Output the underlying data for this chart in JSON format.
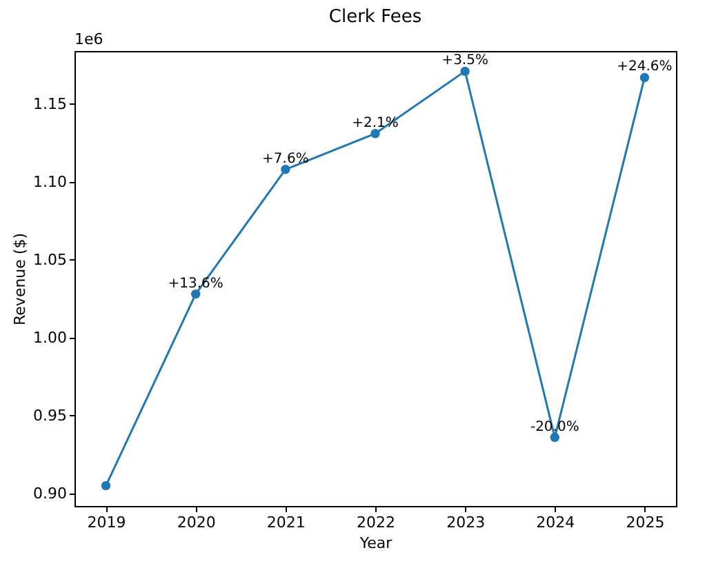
{
  "chart_data": {
    "type": "line",
    "title": "Clerk Fees",
    "xlabel": "Year",
    "ylabel": "Revenue ($)",
    "categories": [
      "2019",
      "2020",
      "2021",
      "2022",
      "2023",
      "2024",
      "2025"
    ],
    "series": [
      {
        "color": "#1f77b4",
        "values": [
          0.905,
          1.028,
          1.108,
          1.131,
          1.171,
          0.936,
          1.167
        ]
      }
    ],
    "ylim": [
      0.892,
      1.184
    ],
    "yticks": [
      {
        "value": 0.9,
        "label": "0.90"
      },
      0.95,
      {
        "value": 1.0,
        "label": "1.00"
      },
      1.05,
      {
        "value": 1.1,
        "label": "1.10"
      },
      1.15
    ],
    "annotations": [
      "1e6",
      {
        "text": "+13.6%",
        "x": "2020",
        "y": 1.028
      },
      {
        "text": "+7.6%",
        "x": "2021",
        "y": 1.108
      },
      {
        "text": "+2.1%",
        "x": "2022",
        "y": 1.131
      },
      {
        "text": "+3.5%",
        "x": "2023",
        "y": 1.171
      },
      {
        "text": "-20.0%",
        "x": "2024",
        "y": 0.936
      },
      {
        "text": "+24.6%",
        "x": "2025",
        "y": 1.167
      }
    ],
    "marker": "circle",
    "line_style": "solid",
    "grid": false
  }
}
